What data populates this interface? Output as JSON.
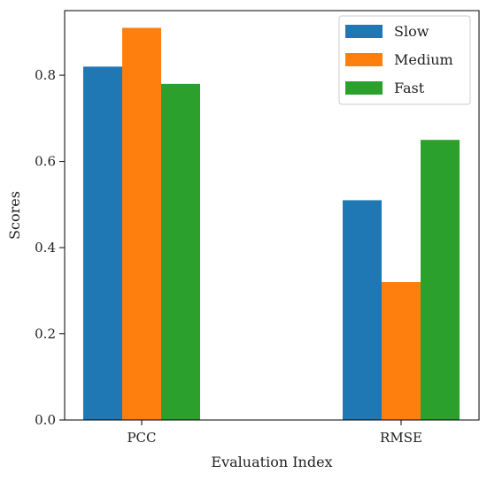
{
  "chart_data": {
    "type": "bar",
    "title": "",
    "xlabel": "Evaluation Index",
    "ylabel": "Scores",
    "categories": [
      "PCC",
      "RMSE"
    ],
    "series": [
      {
        "name": "Slow",
        "values": [
          0.82,
          0.51
        ],
        "color": "#1f77b4"
      },
      {
        "name": "Medium",
        "values": [
          0.91,
          0.32
        ],
        "color": "#ff7f0e"
      },
      {
        "name": "Fast",
        "values": [
          0.78,
          0.65
        ],
        "color": "#2ca02c"
      }
    ],
    "ylim": [
      0,
      0.95
    ],
    "yticks": [
      "0.0",
      "0.2",
      "0.4",
      "0.6",
      "0.8"
    ],
    "grid": false,
    "legend_position": "top-right"
  }
}
